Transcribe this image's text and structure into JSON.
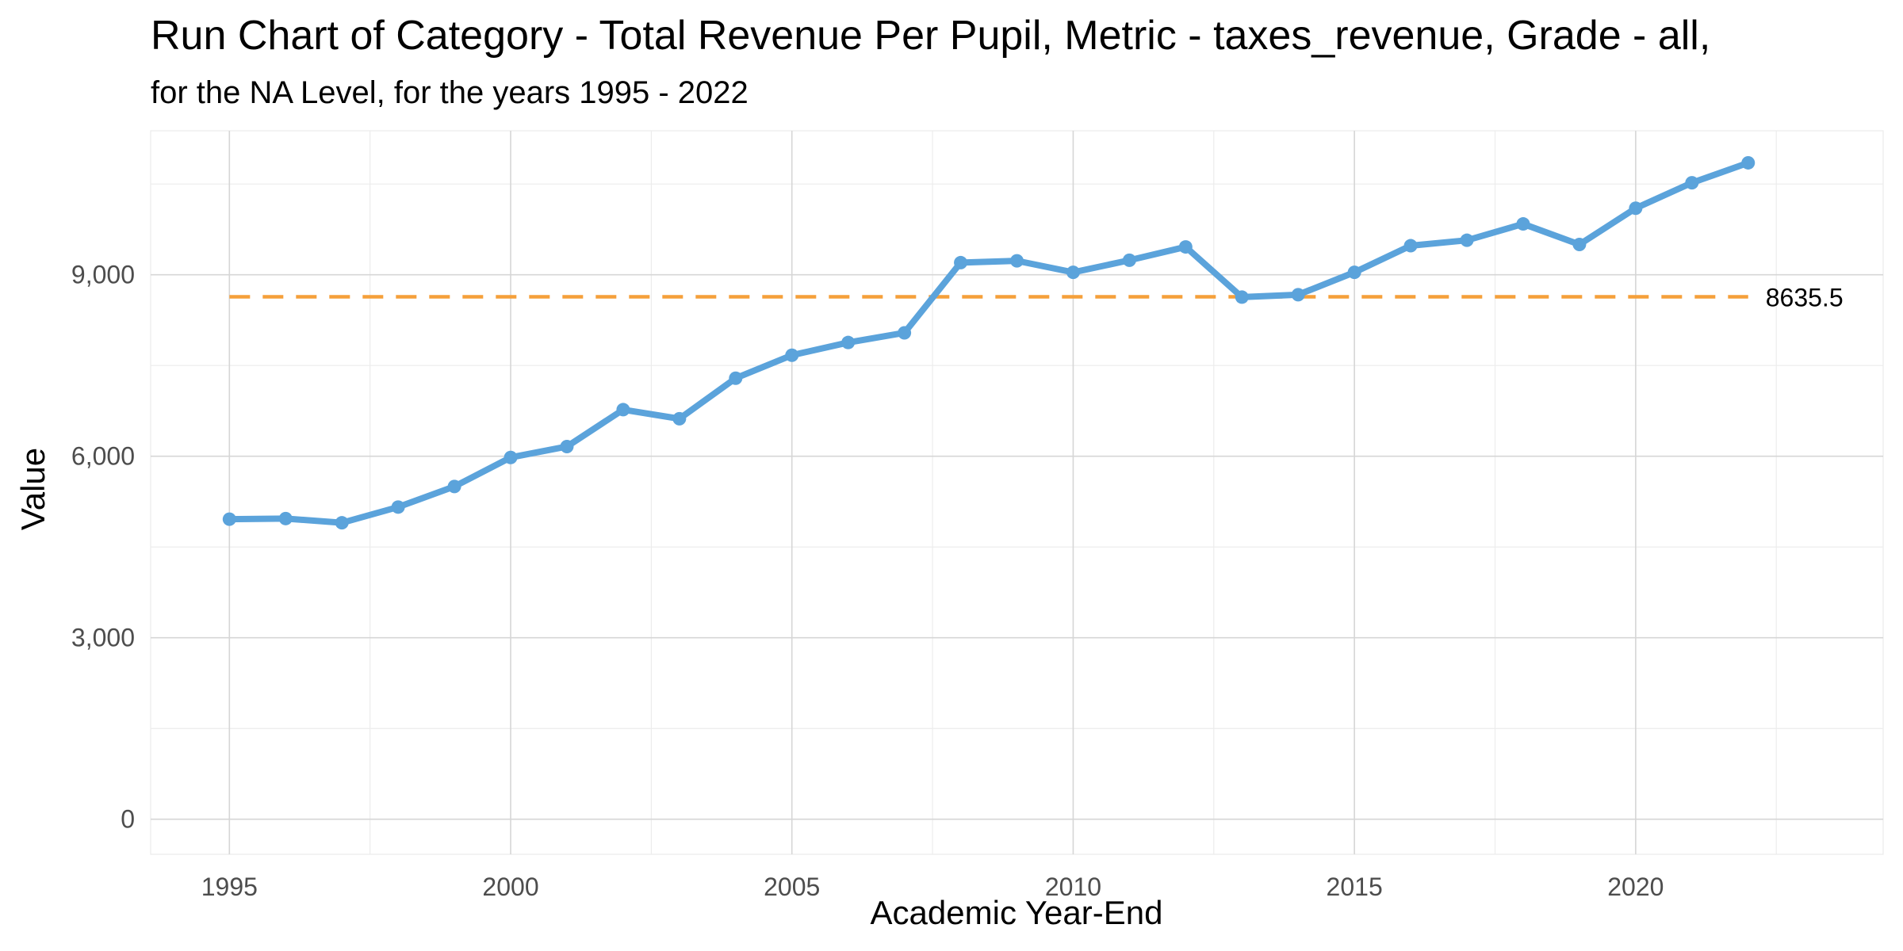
{
  "chart_data": {
    "type": "line",
    "title": "Run Chart of Category - Total Revenue Per Pupil, Metric - taxes_revenue, Grade - all,",
    "subtitle": "for the NA Level, for the years 1995 - 2022",
    "xlabel": "Academic Year-End",
    "ylabel": "Value",
    "xlim": [
      1993.6,
      2024.4
    ],
    "ylim": [
      -580,
      11380
    ],
    "x_ticks": [
      1995,
      2000,
      2005,
      2010,
      2015,
      2020
    ],
    "x_tick_labels": [
      "1995",
      "2000",
      "2005",
      "2010",
      "2015",
      "2020"
    ],
    "y_ticks": [
      0,
      3000,
      6000,
      9000
    ],
    "y_tick_labels": [
      "0",
      "3,000",
      "6,000",
      "9,000"
    ],
    "grid": true,
    "legend": "none",
    "series": [
      {
        "x": [
          1995,
          1996,
          1997,
          1998,
          1999,
          2000,
          2001,
          2002,
          2003,
          2004,
          2005,
          2006,
          2007,
          2008,
          2009,
          2010,
          2011,
          2012,
          2013,
          2014,
          2015,
          2016,
          2017,
          2018,
          2019,
          2020,
          2021,
          2022
        ],
        "values": [
          4960,
          4970,
          4900,
          5160,
          5500,
          5980,
          6160,
          6770,
          6620,
          7290,
          7670,
          7880,
          8040,
          9200,
          9230,
          9040,
          9240,
          9460,
          8630,
          8670,
          9040,
          9480,
          9570,
          9840,
          9500,
          10100,
          10520,
          10850
        ],
        "color": "#5ba3db"
      }
    ],
    "reference_line": {
      "value": 8635.5,
      "label": "8635.5",
      "color": "#f5a03a",
      "style": "dashed"
    }
  }
}
